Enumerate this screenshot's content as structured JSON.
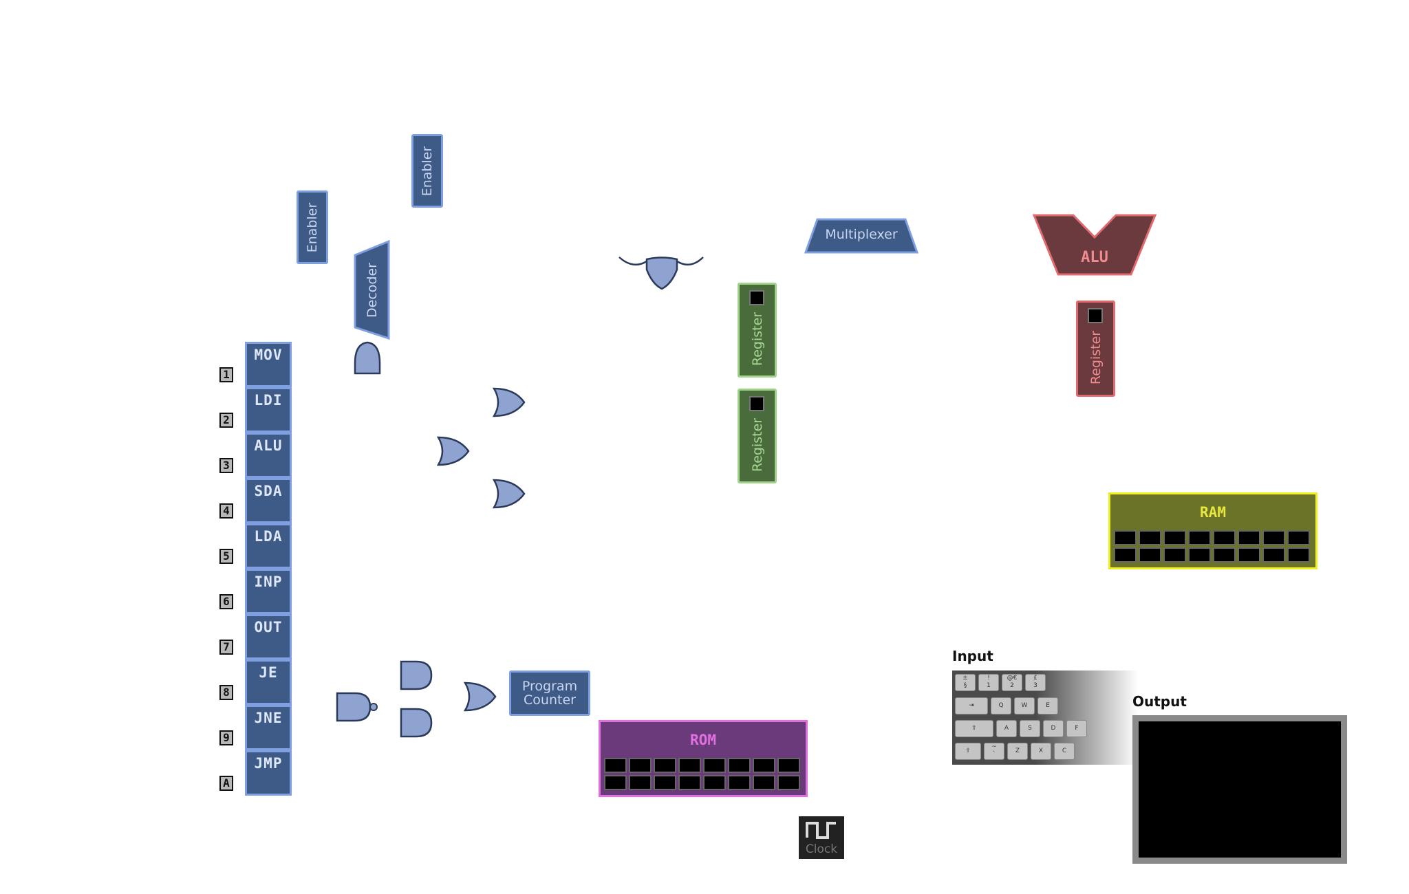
{
  "components": {
    "enabler_left": "Enabler",
    "enabler_top": "Enabler",
    "decoder": "Decoder",
    "multiplexer": "Multiplexer",
    "alu": "ALU",
    "register_green_1": "Register",
    "register_green_2": "Register",
    "register_red": "Register",
    "ram": "RAM",
    "rom": "ROM",
    "program_counter_line1": "Program",
    "program_counter_line2": "Counter",
    "clock": "Clock",
    "input": "Input",
    "output": "Output"
  },
  "instructions": [
    {
      "num": "1",
      "label": "MOV"
    },
    {
      "num": "2",
      "label": "LDI"
    },
    {
      "num": "3",
      "label": "ALU"
    },
    {
      "num": "4",
      "label": "SDA"
    },
    {
      "num": "5",
      "label": "LDA"
    },
    {
      "num": "6",
      "label": "INP"
    },
    {
      "num": "7",
      "label": "OUT"
    },
    {
      "num": "8",
      "label": "JE"
    },
    {
      "num": "9",
      "label": "JNE"
    },
    {
      "num": "A",
      "label": "JMP"
    }
  ],
  "keyboard": {
    "row1": [
      "±\n§",
      "!\n1",
      "@€\n2",
      "£\n3"
    ],
    "row2": [
      "⇥",
      "Q",
      "W",
      "E"
    ],
    "row3": [
      "⇪",
      "A",
      "S",
      "D",
      "F"
    ],
    "row4": [
      "⇧",
      "~\n`",
      "Z",
      "X",
      "C"
    ]
  },
  "colors": {
    "blue_fill": "#3e5a86",
    "blue_border": "#7fa0e0",
    "gate_fill": "#8ea3cf",
    "green_fill": "#4a6b3c",
    "red_fill": "#6a3a3e",
    "ram_fill": "#6a7327",
    "ram_border": "#f0f020",
    "rom_fill": "#6a3a7a",
    "rom_border": "#e070e0"
  }
}
